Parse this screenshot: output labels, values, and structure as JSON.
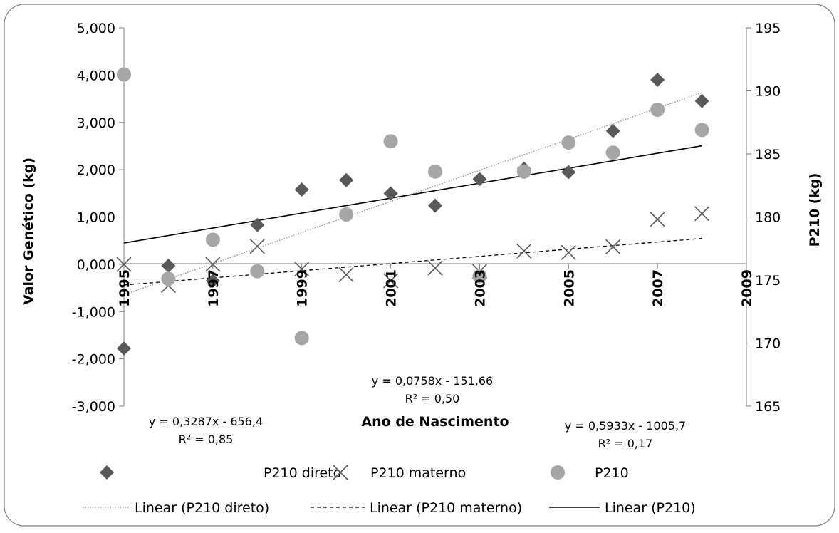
{
  "chart_data": {
    "type": "scatter",
    "xlabel": "Ano de Nascimento",
    "ylabel_left": "Valor Genético (kg)",
    "ylabel_right": "P210 (kg)",
    "x_ticks": [
      "1995",
      "1997",
      "1999",
      "2001",
      "2003",
      "2005",
      "2007",
      "2009"
    ],
    "xlim": [
      1995,
      2009
    ],
    "ylim_left": [
      -3,
      5
    ],
    "y_ticks_left": [
      "-3,000",
      "-2,000",
      "-1,000",
      "0,000",
      "1,000",
      "2,000",
      "3,000",
      "4,000",
      "5,000"
    ],
    "ylim_right": [
      165,
      195
    ],
    "y_ticks_right": [
      "165",
      "170",
      "175",
      "180",
      "185",
      "190",
      "195"
    ],
    "grid": false,
    "legend_position": "bottom",
    "series": [
      {
        "name": "P210 direto",
        "axis": "left",
        "marker": "diamond",
        "color": "#595959",
        "x": [
          1995,
          1996,
          1997,
          1998,
          1999,
          2000,
          2001,
          2002,
          2003,
          2004,
          2005,
          2006,
          2007,
          2008
        ],
        "y": [
          -1.78,
          -0.03,
          -0.35,
          0.83,
          1.58,
          1.78,
          1.5,
          1.24,
          1.8,
          2.02,
          1.95,
          2.82,
          3.9,
          3.45
        ]
      },
      {
        "name": "P210 materno",
        "axis": "left",
        "marker": "x",
        "color": "#595959",
        "x": [
          1995,
          1996,
          1997,
          1998,
          1999,
          2000,
          2001,
          2002,
          2003,
          2004,
          2005,
          2006,
          2007,
          2008
        ],
        "y": [
          0.0,
          -0.45,
          0.0,
          0.38,
          -0.1,
          -0.22,
          -0.35,
          -0.08,
          -0.15,
          0.28,
          0.25,
          0.37,
          0.95,
          1.07
        ]
      },
      {
        "name": "P210",
        "axis": "right",
        "marker": "circle",
        "color": "#a6a6a6",
        "x": [
          1995,
          1996,
          1997,
          1998,
          1999,
          2000,
          2001,
          2002,
          2003,
          2004,
          2005,
          2006,
          2007,
          2008
        ],
        "y": [
          191.3,
          175.1,
          178.2,
          175.7,
          170.4,
          180.2,
          186.0,
          183.6,
          175.3,
          183.6,
          185.9,
          185.1,
          188.5,
          186.9
        ]
      }
    ],
    "trendlines": [
      {
        "name": "Linear (P210 direto)",
        "axis": "left",
        "style": "dotted",
        "color": "#8c8c8c",
        "slope": 0.3287,
        "intercept": -656.4,
        "equation": "y = 0,3287x - 656,4",
        "r2": "R² = 0,85"
      },
      {
        "name": "Linear (P210 materno)",
        "axis": "left",
        "style": "dashed",
        "color": "#000000",
        "slope": 0.0758,
        "intercept": -151.66,
        "equation": "y = 0,0758x - 151,66",
        "r2": "R² = 0,50"
      },
      {
        "name": "Linear (P210)",
        "axis": "right",
        "style": "solid",
        "color": "#000000",
        "slope": 0.5933,
        "intercept": -1005.7,
        "equation": "y = 0,5933x - 1005,7",
        "r2": "R² = 0,17"
      }
    ]
  }
}
